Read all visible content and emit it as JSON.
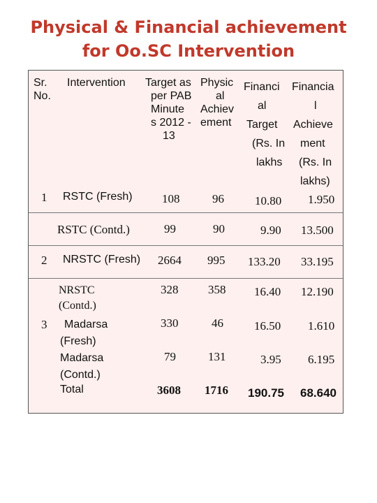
{
  "title": {
    "line1": "Physical & Financial achievement",
    "line2": "for Oo.SC Intervention"
  },
  "headers": {
    "sr": [
      "Sr.",
      "No."
    ],
    "intervention": [
      "Intervention"
    ],
    "target": [
      "Target as",
      "per PAB",
      "Minute",
      "s 2012 -",
      "13"
    ],
    "physical": [
      "Physic",
      "al",
      "Achiev",
      "ement"
    ],
    "fin_target": [
      "Financi",
      "al",
      "Target",
      "(Rs. In",
      "lakhs"
    ],
    "fin_achieve": [
      "Financia",
      "l",
      "Achieve",
      "ment",
      "(Rs. In",
      "lakhs)"
    ]
  },
  "rows": [
    {
      "sr": "1",
      "intervention": "RSTC (Fresh)",
      "target": "108",
      "physical": "96",
      "fin_target": "10.80",
      "fin_achieve": "1.950"
    },
    {
      "sr": "",
      "intervention": "RSTC (Contd.)",
      "target": "99",
      "physical": "90",
      "fin_target": "9.90",
      "fin_achieve": "13.500"
    },
    {
      "sr": "2",
      "intervention": "NRSTC (Fresh)",
      "target": "2664",
      "physical": "995",
      "fin_target": "133.20",
      "fin_achieve": "33.195"
    },
    {
      "sr": "",
      "intervention": [
        "NRSTC",
        "(Contd.)"
      ],
      "target": "328",
      "physical": "358",
      "fin_target": "16.40",
      "fin_achieve": "12.190"
    },
    {
      "sr": "3",
      "intervention": [
        "Madarsa",
        "(Fresh)"
      ],
      "target": "330",
      "physical": "46",
      "fin_target": "16.50",
      "fin_achieve": "1.610"
    },
    {
      "sr": "",
      "intervention": [
        "Madarsa",
        "(Contd.)"
      ],
      "target": "79",
      "physical": "131",
      "fin_target": "3.95",
      "fin_achieve": "6.195"
    },
    {
      "sr": "",
      "intervention": "Total",
      "target": "3608",
      "physical": "1716",
      "fin_target": "190.75",
      "fin_achieve": "68.640"
    }
  ]
}
